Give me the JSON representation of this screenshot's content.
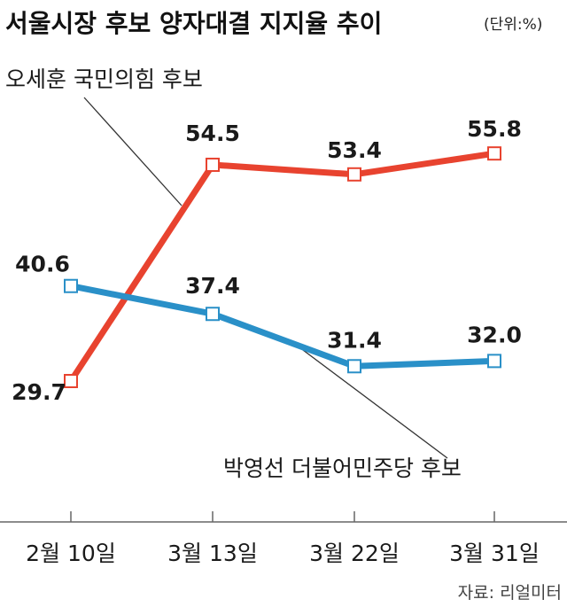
{
  "header": {
    "title": "서울시장 후보 양자대결 지지율 추이",
    "unit": "(단위:%)"
  },
  "source": "자료: 리얼미터",
  "chart_data": {
    "type": "line",
    "title": "서울시장 후보 양자대결 지지율 추이",
    "unit": "%",
    "categories": [
      "2월 10일",
      "3월 13일",
      "3월 22일",
      "3월 31일"
    ],
    "series": [
      {
        "name": "오세훈 국민의힘 후보",
        "color": "#e8432f",
        "values": [
          29.7,
          54.5,
          53.4,
          55.8
        ]
      },
      {
        "name": "박영선 더불어민주당 후보",
        "color": "#2a90c8",
        "values": [
          40.6,
          37.4,
          31.4,
          32.0
        ]
      }
    ],
    "grid": false,
    "legend": "annotations"
  }
}
